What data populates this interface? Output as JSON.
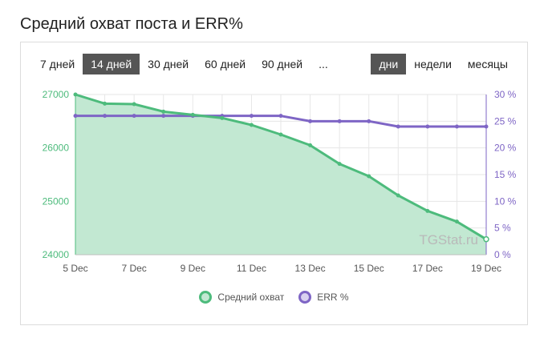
{
  "page": {
    "title": "Средний охват поста и ERR%"
  },
  "range_tabs": [
    {
      "label": "7 дней",
      "active": false
    },
    {
      "label": "14 дней",
      "active": true
    },
    {
      "label": "30 дней",
      "active": false
    },
    {
      "label": "60 дней",
      "active": false
    },
    {
      "label": "90 дней",
      "active": false
    },
    {
      "label": "...",
      "active": false
    }
  ],
  "granularity_tabs": [
    {
      "label": "дни",
      "active": true
    },
    {
      "label": "недели",
      "active": false
    },
    {
      "label": "месяцы",
      "active": false
    }
  ],
  "watermark": "TGStat.ru",
  "colors": {
    "reach_line": "#4dbb7c",
    "reach_fill": "#c2e8d2",
    "err_line": "#7e65c5",
    "err_fill": "#d9d1f0",
    "grid": "#e6e6e6"
  },
  "chart_data": {
    "type": "line",
    "x": [
      "5 Dec",
      "6 Dec",
      "7 Dec",
      "8 Dec",
      "9 Dec",
      "10 Dec",
      "11 Dec",
      "12 Dec",
      "13 Dec",
      "14 Dec",
      "15 Dec",
      "16 Dec",
      "17 Dec",
      "18 Dec",
      "19 Dec"
    ],
    "x_tick_labels": [
      "5 Dec",
      "7 Dec",
      "9 Dec",
      "11 Dec",
      "13 Dec",
      "15 Dec",
      "17 Dec",
      "19 Dec"
    ],
    "series": [
      {
        "name": "Средний охват",
        "axis": "left",
        "type": "area",
        "values": [
          27000,
          26830,
          26820,
          26680,
          26620,
          26560,
          26430,
          26250,
          26050,
          25700,
          25470,
          25110,
          24820,
          24620,
          24290
        ]
      },
      {
        "name": "ERR %",
        "axis": "right",
        "type": "line",
        "values": [
          26,
          26,
          26,
          26,
          26,
          26,
          26,
          26,
          25,
          25,
          25,
          24,
          24,
          24,
          24
        ]
      }
    ],
    "y_left": {
      "ticks": [
        "24000",
        "25000",
        "26000",
        "27000"
      ],
      "lim": [
        24000,
        27000
      ]
    },
    "y_right": {
      "ticks": [
        "0 %",
        "5 %",
        "10 %",
        "15 %",
        "20 %",
        "25 %",
        "30 %"
      ],
      "lim": [
        0,
        30
      ]
    },
    "grid": true,
    "legend_position": "bottom-center"
  }
}
